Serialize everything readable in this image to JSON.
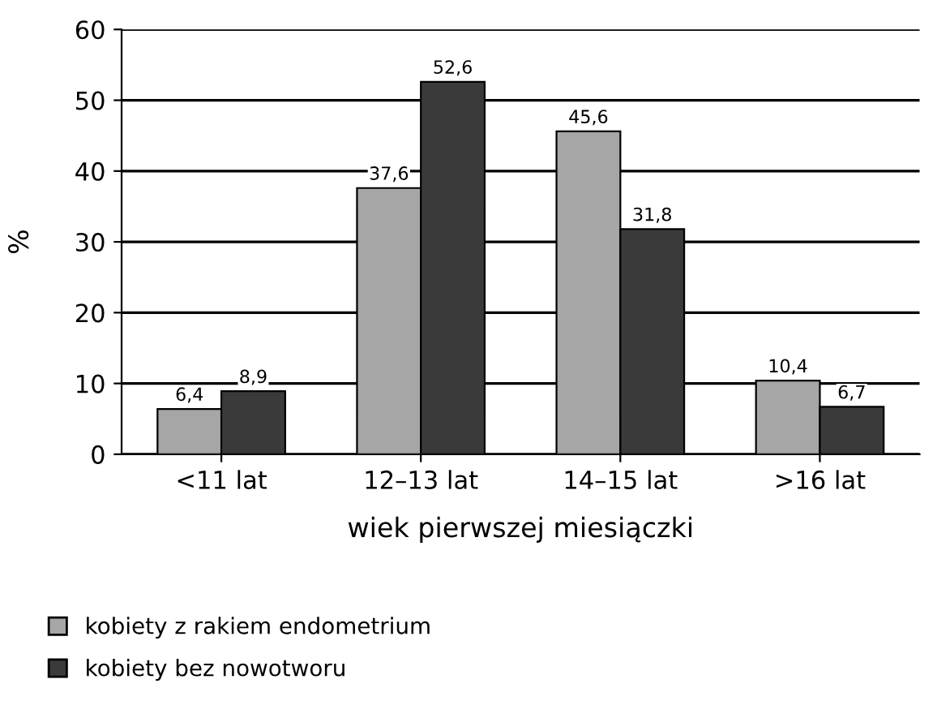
{
  "chart_data": {
    "type": "bar",
    "xlabel": "wiek pierwszej miesiączki",
    "ylabel": "%",
    "categories": [
      "<11 lat",
      "12–13 lat",
      "14–15 lat",
      ">16 lat"
    ],
    "series": [
      {
        "name": "kobiety z rakiem endometrium",
        "color": "#a6a6a6",
        "values": [
          6.4,
          37.6,
          45.6,
          10.4
        ],
        "value_labels": [
          "6,4",
          "37,6",
          "45,6",
          "10,4"
        ]
      },
      {
        "name": "kobiety bez nowotworu",
        "color": "#3a3a3a",
        "values": [
          8.9,
          52.6,
          31.8,
          6.7
        ],
        "value_labels": [
          "8,9",
          "52,6",
          "31,8",
          "6,7"
        ]
      }
    ],
    "ylim": [
      0,
      60
    ],
    "yticks": [
      0,
      10,
      20,
      30,
      40,
      50,
      60
    ],
    "grid": "y",
    "legend": "bottom left"
  }
}
